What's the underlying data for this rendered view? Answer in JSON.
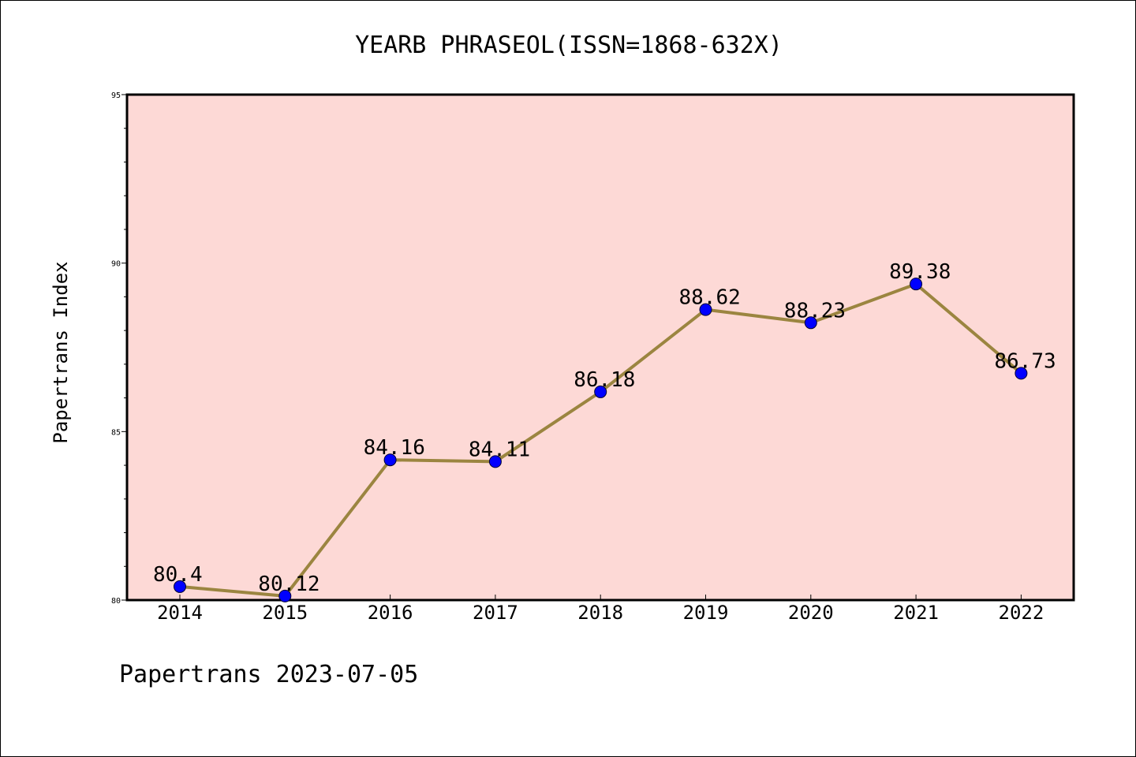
{
  "chart_data": {
    "type": "line",
    "title": "YEARB PHRASEOL(ISSN=1868-632X)",
    "xlabel": "",
    "ylabel": "Papertrans Index",
    "categories": [
      "2014",
      "2015",
      "2016",
      "2017",
      "2018",
      "2019",
      "2020",
      "2021",
      "2022"
    ],
    "series": [
      {
        "values": [
          80.4,
          80.12,
          84.16,
          84.11,
          86.18,
          88.62,
          88.23,
          89.38,
          86.73
        ],
        "data_labels": [
          "80.4",
          "80.12",
          "84.16",
          "84.11",
          "86.18",
          "88.62",
          "88.23",
          "89.38",
          "86.73"
        ],
        "line_color": "#9b8540",
        "marker_color": "#0000ff"
      }
    ],
    "ylim": [
      80,
      95
    ],
    "y_ticks": [
      80,
      85,
      90,
      95
    ],
    "y_minor_step": 1,
    "y_tick_labels": [
      "80",
      "85",
      "90",
      "95"
    ],
    "plot_background": "#fdd9d6",
    "grid": false,
    "legend": "none"
  },
  "footer": "Papertrans 2023-07-05"
}
